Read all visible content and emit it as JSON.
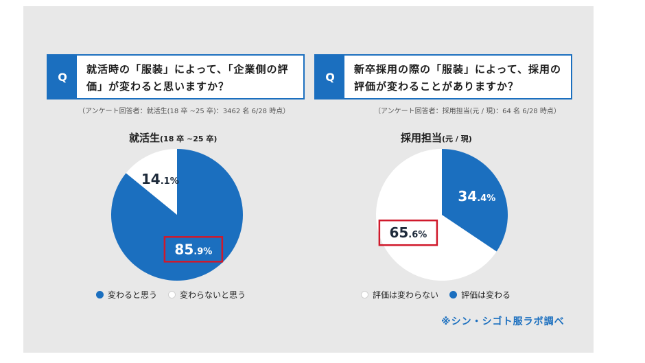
{
  "colors": {
    "blue": "#1b6fbf",
    "white": "#ffffff",
    "highlight": "#d0192b",
    "panel": "#e8e8e8"
  },
  "left": {
    "tag": "Q",
    "question_line1": "就活時の「服装」によって、「企業側の評",
    "question_line2": "価」が変わると思いますか？",
    "note": "（アンケート回答者：就活生(18 卒 ~25 卒)：3462 名 6/28 時点）",
    "chart_title": "就活生",
    "chart_title_sub": "(18 卒 ~25 卒)"
  },
  "right": {
    "tag": "Q",
    "question_line1": "新卒採用の際の「服装」によって、採用の",
    "question_line2": "評価が変わることがありますか？",
    "note": "（アンケート回答者：採用担当(元 / 現)：64 名 6/28 時点）",
    "chart_title": "採用担当",
    "chart_title_sub": "(元 / 現)"
  },
  "source": "※シン・シゴト服ラボ調べ",
  "chart_data": [
    {
      "type": "pie",
      "title": "就活生(18 卒 ~25 卒)",
      "slices": [
        {
          "label": "変わると思う",
          "value": 85.9,
          "value_text": "85.9%",
          "color": "#1b6fbf",
          "highlighted": true
        },
        {
          "label": "変わらないと思う",
          "value": 14.1,
          "value_text": "14.1%",
          "color": "#ffffff",
          "highlighted": false
        }
      ],
      "legend": "bottom"
    },
    {
      "type": "pie",
      "title": "採用担当(元 / 現)",
      "slices": [
        {
          "label": "評価は変わらない",
          "value": 65.6,
          "value_text": "65.6%",
          "color": "#ffffff",
          "highlighted": true
        },
        {
          "label": "評価は変わる",
          "value": 34.4,
          "value_text": "34.4%",
          "color": "#1b6fbf",
          "highlighted": false
        }
      ],
      "legend": "bottom"
    }
  ]
}
